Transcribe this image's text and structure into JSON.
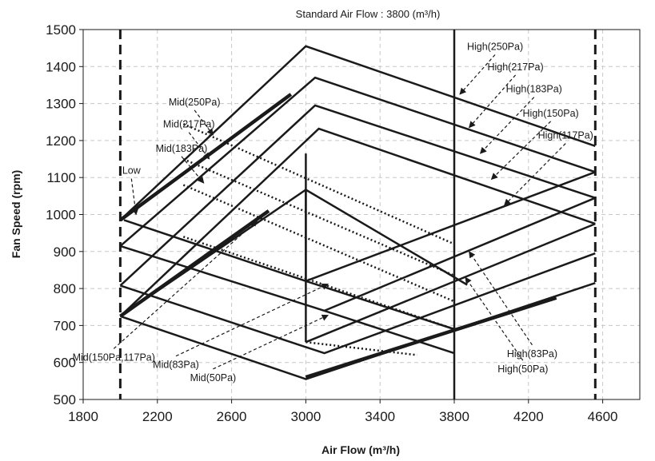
{
  "chart_data": {
    "type": "line",
    "title": "Standard Air Flow : 3800 (m³/h)",
    "xlabel": "Air Flow (m³/h)",
    "ylabel": "Fan Speed (rpm)",
    "xlim": [
      1800,
      4800
    ],
    "ylim": [
      500,
      1500
    ],
    "xticks": [
      "1800",
      "2200",
      "2600",
      "3000",
      "3400",
      "3800",
      "4200",
      "4600"
    ],
    "yticks": [
      "500",
      "600",
      "700",
      "800",
      "900",
      "1000",
      "1100",
      "1200",
      "1300",
      "1400",
      "1500"
    ],
    "grid": true,
    "colors": {
      "line": "#1a1a1a",
      "grid": "#c8c8c8",
      "background": "#ffffff"
    },
    "limit_lines": [
      {
        "x": 2000,
        "style": "dashed"
      },
      {
        "x": 3800,
        "style": "solid"
      },
      {
        "x": 4560,
        "style": "dashed"
      }
    ],
    "curves": [
      {
        "points": [
          [
            2000,
            985
          ],
          [
            3000,
            1455
          ],
          [
            4560,
            1185
          ]
        ]
      },
      {
        "points": [
          [
            2000,
            915
          ],
          [
            3050,
            1370
          ],
          [
            4560,
            1115
          ]
        ]
      },
      {
        "points": [
          [
            2000,
            808
          ],
          [
            3050,
            1295
          ],
          [
            4560,
            1045
          ]
        ]
      },
      {
        "points": [
          [
            2000,
            725
          ],
          [
            3070,
            1232
          ],
          [
            4560,
            975
          ]
        ]
      },
      {
        "points": [
          [
            2020,
            985
          ],
          [
            3000,
            820
          ],
          [
            3800,
            690
          ]
        ]
      },
      {
        "points": [
          [
            2000,
            915
          ],
          [
            3100,
            740
          ],
          [
            3800,
            625
          ]
        ]
      },
      {
        "points": [
          [
            2000,
            808
          ],
          [
            3100,
            625
          ],
          [
            4560,
            895
          ]
        ]
      },
      {
        "points": [
          [
            2000,
            725
          ],
          [
            3000,
            555
          ],
          [
            4560,
            815
          ]
        ]
      },
      {
        "points": [
          [
            3000,
            820
          ],
          [
            4560,
            1115
          ]
        ]
      },
      {
        "points": [
          [
            3100,
            740
          ],
          [
            4560,
            1045
          ]
        ]
      },
      {
        "points": [
          [
            3000,
            655
          ],
          [
            4560,
            975
          ]
        ]
      },
      {
        "points": [
          [
            2000,
            725
          ],
          [
            3000,
            1067
          ],
          [
            3870,
            810
          ]
        ]
      },
      {
        "points": [
          [
            3000,
            1067
          ],
          [
            3000,
            820
          ]
        ]
      },
      {
        "points": [
          [
            3000,
            1165
          ],
          [
            3000,
            655
          ]
        ]
      }
    ],
    "thick_curves": [
      {
        "points": [
          [
            2000,
            985
          ],
          [
            2920,
            1325
          ]
        ]
      },
      {
        "points": [
          [
            2000,
            725
          ],
          [
            2800,
            1010
          ]
        ]
      },
      {
        "points": [
          [
            3000,
            560
          ],
          [
            4350,
            775
          ]
        ]
      }
    ],
    "mid_dotted": [
      {
        "points": [
          [
            2340,
            1245
          ],
          [
            3800,
            920
          ]
        ]
      },
      {
        "points": [
          [
            2340,
            1150
          ],
          [
            3800,
            835
          ]
        ]
      },
      {
        "points": [
          [
            2340,
            1080
          ],
          [
            3800,
            765
          ]
        ]
      },
      {
        "points": [
          [
            2340,
            940
          ],
          [
            3800,
            690
          ]
        ]
      },
      {
        "points": [
          [
            3000,
            655
          ],
          [
            3600,
            620
          ]
        ]
      }
    ],
    "annotations": [
      {
        "text": "High(250Pa)",
        "x": 4020,
        "y": 1445,
        "tx": 3830,
        "ty": 1325
      },
      {
        "text": "High(217Pa)",
        "x": 4130,
        "y": 1390,
        "tx": 3880,
        "ty": 1235
      },
      {
        "text": "High(183Pa)",
        "x": 4230,
        "y": 1330,
        "tx": 3940,
        "ty": 1165
      },
      {
        "text": "High(150Pa)",
        "x": 4320,
        "y": 1265,
        "tx": 4000,
        "ty": 1095
      },
      {
        "text": "High(117Pa)",
        "x": 4400,
        "y": 1205,
        "tx": 4070,
        "ty": 1025
      },
      {
        "text": "Mid(250Pa)",
        "x": 2400,
        "y": 1295,
        "tx": 2500,
        "ty": 1215
      },
      {
        "text": "Mid(217Pa)",
        "x": 2370,
        "y": 1235,
        "tx": 2480,
        "ty": 1150
      },
      {
        "text": "Mid(183Pa)",
        "x": 2330,
        "y": 1170,
        "tx": 2450,
        "ty": 1085
      },
      {
        "text": "Low",
        "x": 2060,
        "y": 1110,
        "tx": 2085,
        "ty": 1000
      },
      {
        "text": "Mid(150Pa,117Pa)",
        "x": 1965,
        "y": 605,
        "tx": 2740,
        "ty": 985
      },
      {
        "text": "Mid(83Pa)",
        "x": 2300,
        "y": 585,
        "tx": 3120,
        "ty": 812
      },
      {
        "text": "Mid(50Pa)",
        "x": 2500,
        "y": 550,
        "tx": 3120,
        "ty": 728
      },
      {
        "text": "High(83Pa)",
        "x": 4220,
        "y": 615,
        "tx": 3880,
        "ty": 900
      },
      {
        "text": "High(50Pa)",
        "x": 4170,
        "y": 573,
        "tx": 3860,
        "ty": 830
      }
    ]
  }
}
